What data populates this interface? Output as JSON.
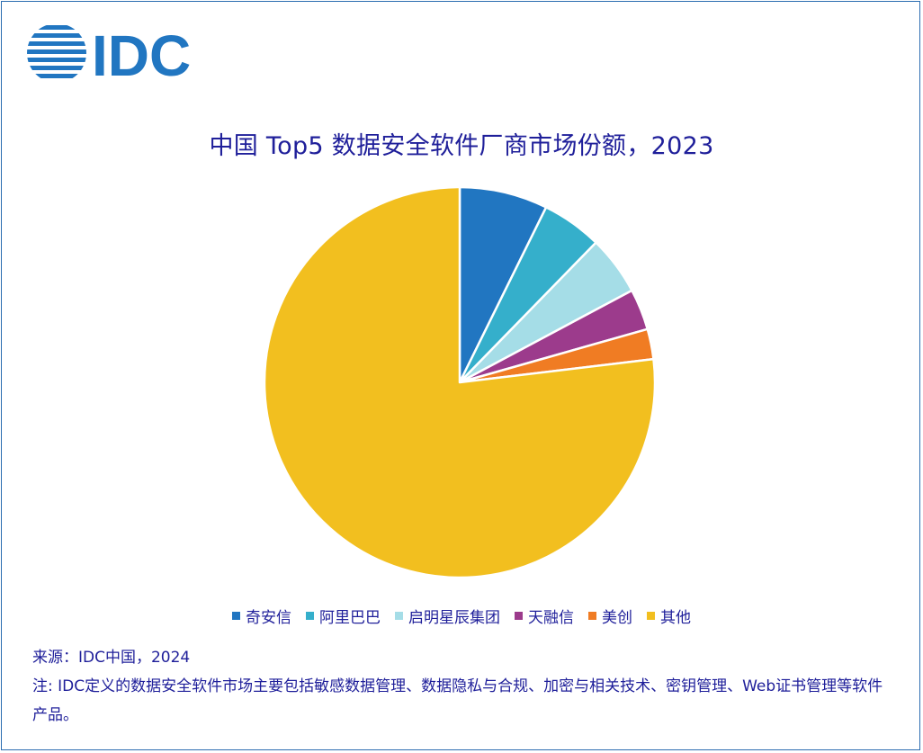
{
  "brand": {
    "logo_text": "IDC",
    "color": "#2176c1"
  },
  "chart_data": {
    "type": "pie",
    "title": "中国 Top5 数据安全软件厂商市场份额，2023",
    "categories": [
      "奇安信",
      "阿里巴巴",
      "启明星辰集团",
      "天融信",
      "美创",
      "其他"
    ],
    "values": [
      7.3,
      5.0,
      4.9,
      3.4,
      2.5,
      76.9
    ],
    "unit": "%",
    "colors": [
      "#2176c1",
      "#35afcb",
      "#a5dde7",
      "#9c3b8c",
      "#f07c23",
      "#f2bf1f"
    ],
    "start_angle_deg": 0,
    "direction": "clockwise",
    "legend_position": "bottom"
  },
  "footer": {
    "source": "来源：IDC中国，2024",
    "note": "注: IDC定义的数据安全软件市场主要包括敏感数据管理、数据隐私与合规、加密与相关技术、密钥管理、Web证书管理等软件产品。"
  }
}
